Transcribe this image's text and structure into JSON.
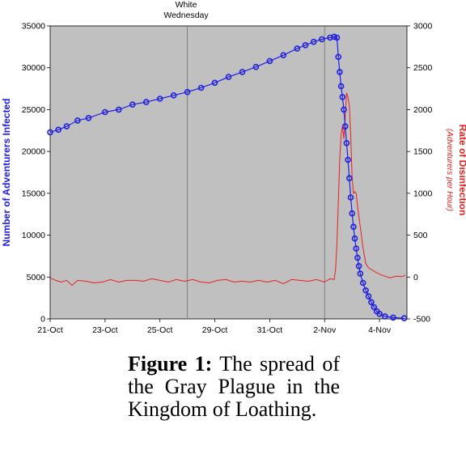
{
  "chart_data": {
    "type": "line",
    "annotation": {
      "lines": [
        "White",
        "Wednesday"
      ],
      "x_day": 5
    },
    "x_tick_labels": [
      {
        "day": 0,
        "label": "21-Oct"
      },
      {
        "day": 2,
        "label": "23-Oct"
      },
      {
        "day": 4,
        "label": "25-Oct"
      },
      {
        "day": 6,
        "label": "29-Oct"
      },
      {
        "day": 8,
        "label": "31-Oct"
      },
      {
        "day": 10,
        "label": "2-Nov"
      },
      {
        "day": 12,
        "label": "4-Nov"
      }
    ],
    "xlim": [
      0,
      13
    ],
    "y_left": {
      "label": "Number of Adventurers Infected",
      "ylim": [
        0,
        35000
      ],
      "ticks": [
        0,
        5000,
        10000,
        15000,
        20000,
        25000,
        30000,
        35000
      ]
    },
    "y_right": {
      "label": "Rate of Disinfection",
      "sublabel": "(Adventurers per Hour)",
      "ylim": [
        -500,
        3000
      ],
      "ticks": [
        -500,
        0,
        500,
        1000,
        1500,
        2000,
        2500,
        3000
      ]
    },
    "grid": {
      "vertical_at_days": [
        5,
        10
      ]
    },
    "series": [
      {
        "axis": "left",
        "color": "#1f1fe6",
        "marker": "circle",
        "points": [
          [
            0.0,
            22300
          ],
          [
            0.3,
            22600
          ],
          [
            0.6,
            23000
          ],
          [
            1.0,
            23700
          ],
          [
            1.4,
            24000
          ],
          [
            2.0,
            24700
          ],
          [
            2.5,
            25000
          ],
          [
            3.0,
            25600
          ],
          [
            3.5,
            25900
          ],
          [
            4.0,
            26300
          ],
          [
            4.5,
            26700
          ],
          [
            5.0,
            27100
          ],
          [
            5.5,
            27600
          ],
          [
            6.0,
            28200
          ],
          [
            6.5,
            28900
          ],
          [
            7.0,
            29500
          ],
          [
            7.5,
            30100
          ],
          [
            8.0,
            30800
          ],
          [
            8.5,
            31500
          ],
          [
            9.0,
            32300
          ],
          [
            9.3,
            32700
          ],
          [
            9.6,
            33100
          ],
          [
            9.9,
            33400
          ],
          [
            10.2,
            33600
          ],
          [
            10.35,
            33700
          ],
          [
            10.45,
            33600
          ],
          [
            10.5,
            31300
          ],
          [
            10.55,
            29500
          ],
          [
            10.6,
            27800
          ],
          [
            10.65,
            26500
          ],
          [
            10.7,
            25000
          ],
          [
            10.75,
            23000
          ],
          [
            10.8,
            21000
          ],
          [
            10.85,
            19000
          ],
          [
            10.9,
            16800
          ],
          [
            10.95,
            14500
          ],
          [
            11.0,
            12600
          ],
          [
            11.05,
            11000
          ],
          [
            11.1,
            9600
          ],
          [
            11.15,
            8400
          ],
          [
            11.2,
            7300
          ],
          [
            11.25,
            6300
          ],
          [
            11.3,
            5400
          ],
          [
            11.4,
            4300
          ],
          [
            11.5,
            3400
          ],
          [
            11.6,
            2700
          ],
          [
            11.7,
            2000
          ],
          [
            11.8,
            1400
          ],
          [
            11.9,
            900
          ],
          [
            12.0,
            600
          ],
          [
            12.2,
            300
          ],
          [
            12.5,
            150
          ],
          [
            12.9,
            80
          ]
        ]
      },
      {
        "axis": "right",
        "color": "#e6201f",
        "marker": "none",
        "points": [
          [
            0.0,
            -10
          ],
          [
            0.2,
            -40
          ],
          [
            0.4,
            -60
          ],
          [
            0.6,
            -40
          ],
          [
            0.8,
            -100
          ],
          [
            1.0,
            -40
          ],
          [
            1.3,
            -50
          ],
          [
            1.6,
            -70
          ],
          [
            1.9,
            -60
          ],
          [
            2.2,
            -30
          ],
          [
            2.5,
            -60
          ],
          [
            2.8,
            -40
          ],
          [
            3.1,
            -40
          ],
          [
            3.4,
            -50
          ],
          [
            3.7,
            -20
          ],
          [
            4.0,
            -40
          ],
          [
            4.3,
            -60
          ],
          [
            4.6,
            -30
          ],
          [
            4.9,
            -50
          ],
          [
            5.2,
            -30
          ],
          [
            5.5,
            -60
          ],
          [
            5.8,
            -70
          ],
          [
            6.1,
            -40
          ],
          [
            6.4,
            -30
          ],
          [
            6.7,
            -60
          ],
          [
            7.0,
            -50
          ],
          [
            7.3,
            -60
          ],
          [
            7.6,
            -40
          ],
          [
            7.9,
            -60
          ],
          [
            8.2,
            -40
          ],
          [
            8.5,
            -80
          ],
          [
            8.8,
            -30
          ],
          [
            9.1,
            -40
          ],
          [
            9.4,
            -50
          ],
          [
            9.7,
            -30
          ],
          [
            10.0,
            -60
          ],
          [
            10.2,
            -20
          ],
          [
            10.35,
            -30
          ],
          [
            10.4,
            100
          ],
          [
            10.45,
            400
          ],
          [
            10.5,
            900
          ],
          [
            10.55,
            1400
          ],
          [
            10.6,
            1700
          ],
          [
            10.65,
            1800
          ],
          [
            10.7,
            1650
          ],
          [
            10.75,
            1900
          ],
          [
            10.8,
            2200
          ],
          [
            10.85,
            2150
          ],
          [
            10.9,
            2050
          ],
          [
            10.95,
            1700
          ],
          [
            11.0,
            1200
          ],
          [
            11.05,
            1000
          ],
          [
            11.1,
            1020
          ],
          [
            11.15,
            1000
          ],
          [
            11.2,
            850
          ],
          [
            11.3,
            600
          ],
          [
            11.4,
            350
          ],
          [
            11.5,
            160
          ],
          [
            11.6,
            110
          ],
          [
            11.7,
            90
          ],
          [
            11.9,
            50
          ],
          [
            12.1,
            20
          ],
          [
            12.4,
            -10
          ],
          [
            12.6,
            10
          ],
          [
            12.8,
            5
          ],
          [
            12.95,
            20
          ]
        ]
      }
    ]
  },
  "caption": {
    "label": "Figure 1:",
    "text": " The spread of the Gray Plague in the Kingdom of Loathing."
  }
}
